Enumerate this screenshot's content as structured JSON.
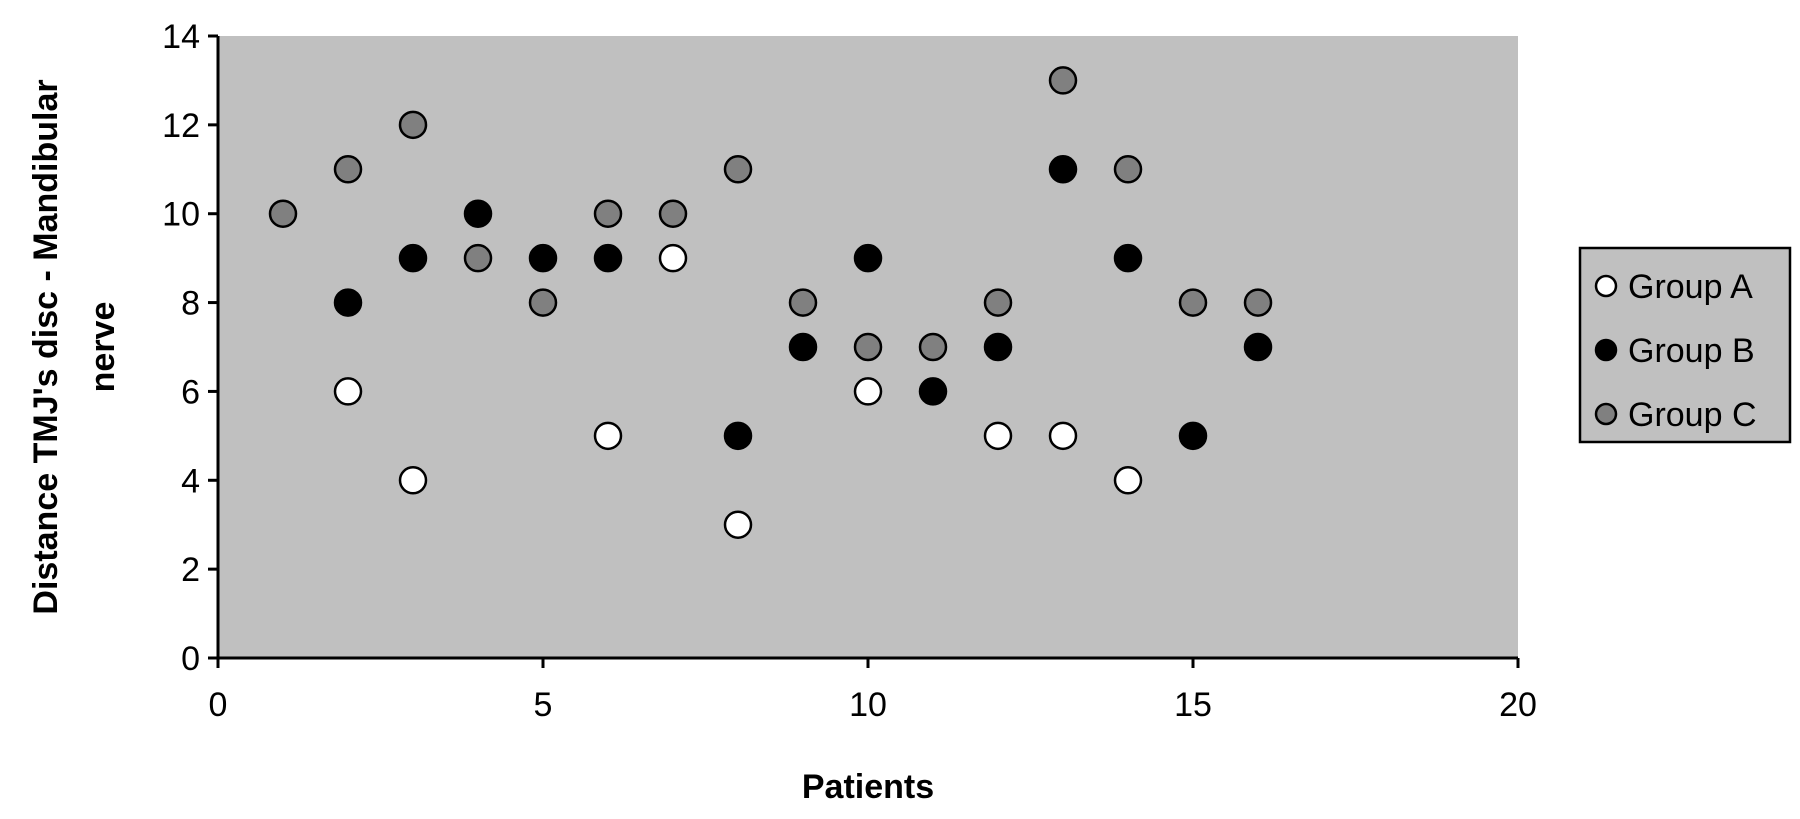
{
  "chart_data": {
    "type": "scatter",
    "title": "",
    "xlabel": "Patients",
    "ylabel": "Distance TMJ's disc - Mandibular nerve",
    "xlim": [
      0,
      20
    ],
    "ylim": [
      0,
      14
    ],
    "xticks": [
      "0",
      "5",
      "10",
      "15",
      "20"
    ],
    "yticks": [
      "0",
      "2",
      "4",
      "6",
      "8",
      "10",
      "12",
      "14"
    ],
    "grid": false,
    "legend_position": "right",
    "plot_background": "#c0c0c0",
    "series": [
      {
        "name": "Group A",
        "color": "#ffffff",
        "points": [
          {
            "x": 2,
            "y": 6
          },
          {
            "x": 3,
            "y": 4
          },
          {
            "x": 6,
            "y": 5
          },
          {
            "x": 7,
            "y": 9
          },
          {
            "x": 8,
            "y": 3
          },
          {
            "x": 10,
            "y": 6
          },
          {
            "x": 12,
            "y": 5
          },
          {
            "x": 13,
            "y": 5
          },
          {
            "x": 14,
            "y": 4
          }
        ]
      },
      {
        "name": "Group B",
        "color": "#000000",
        "points": [
          {
            "x": 2,
            "y": 8
          },
          {
            "x": 3,
            "y": 9
          },
          {
            "x": 4,
            "y": 10
          },
          {
            "x": 5,
            "y": 9
          },
          {
            "x": 6,
            "y": 9
          },
          {
            "x": 8,
            "y": 5
          },
          {
            "x": 9,
            "y": 7
          },
          {
            "x": 10,
            "y": 9
          },
          {
            "x": 11,
            "y": 6
          },
          {
            "x": 12,
            "y": 7
          },
          {
            "x": 13,
            "y": 11
          },
          {
            "x": 14,
            "y": 9
          },
          {
            "x": 15,
            "y": 5
          },
          {
            "x": 16,
            "y": 7
          }
        ]
      },
      {
        "name": "Group C",
        "color": "#808080",
        "points": [
          {
            "x": 1,
            "y": 10
          },
          {
            "x": 2,
            "y": 11
          },
          {
            "x": 3,
            "y": 12
          },
          {
            "x": 4,
            "y": 9
          },
          {
            "x": 5,
            "y": 8
          },
          {
            "x": 6,
            "y": 10
          },
          {
            "x": 7,
            "y": 10
          },
          {
            "x": 8,
            "y": 11
          },
          {
            "x": 9,
            "y": 8
          },
          {
            "x": 10,
            "y": 7
          },
          {
            "x": 11,
            "y": 7
          },
          {
            "x": 12,
            "y": 8
          },
          {
            "x": 13,
            "y": 13
          },
          {
            "x": 14,
            "y": 11
          },
          {
            "x": 15,
            "y": 8
          },
          {
            "x": 16,
            "y": 8
          }
        ]
      }
    ]
  }
}
